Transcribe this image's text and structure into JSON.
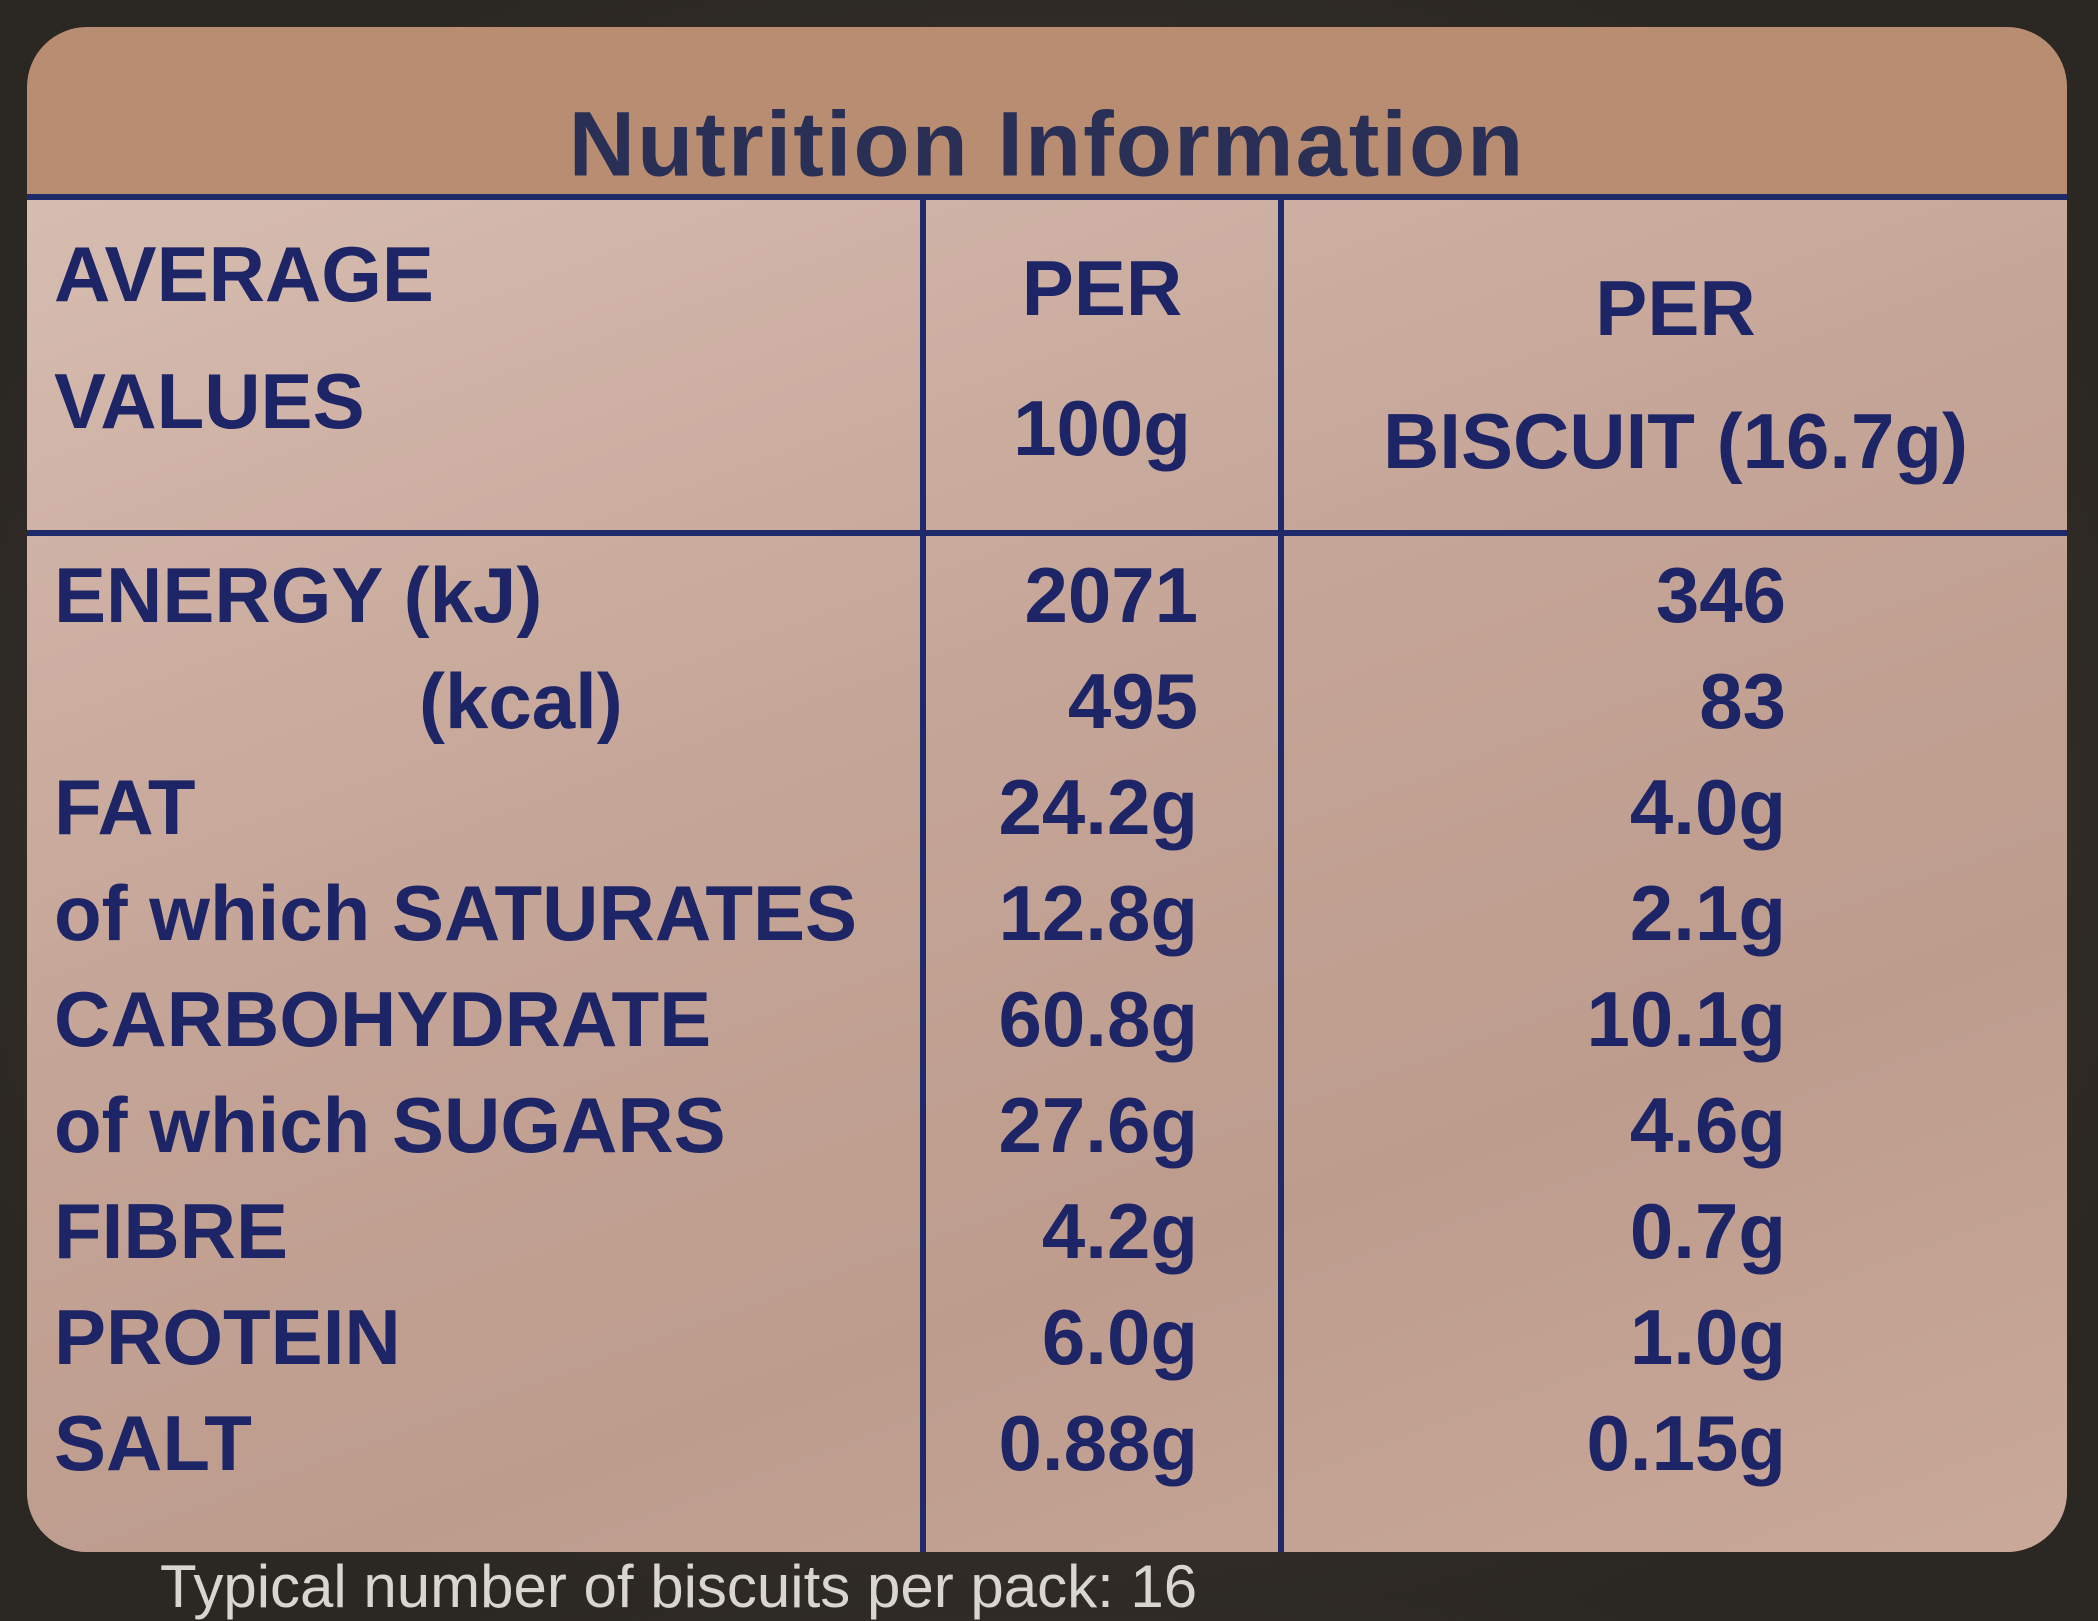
{
  "title": "Nutrition Information",
  "table": {
    "header": [
      [
        "AVERAGE",
        "VALUES"
      ],
      [
        "PER",
        "100g"
      ],
      [
        "PER",
        "BISCUIT (16.7g)"
      ]
    ],
    "rows": [
      [
        "ENERGY (kJ)",
        "2071",
        "346"
      ],
      [
        "(kcal)",
        "495",
        "83"
      ],
      [
        "FAT",
        "24.2g",
        "4.0g"
      ],
      [
        "of which SATURATES",
        "12.8g",
        "2.1g"
      ],
      [
        "CARBOHYDRATE",
        "60.8g",
        "10.1g"
      ],
      [
        "of which SUGARS",
        "27.6g",
        "4.6g"
      ],
      [
        "FIBRE",
        "4.2g",
        "0.7g"
      ],
      [
        "PROTEIN",
        "6.0g",
        "1.0g"
      ],
      [
        "SALT",
        "0.88g",
        "0.15g"
      ]
    ]
  },
  "footer": "Typical number of biscuits per pack: 16"
}
